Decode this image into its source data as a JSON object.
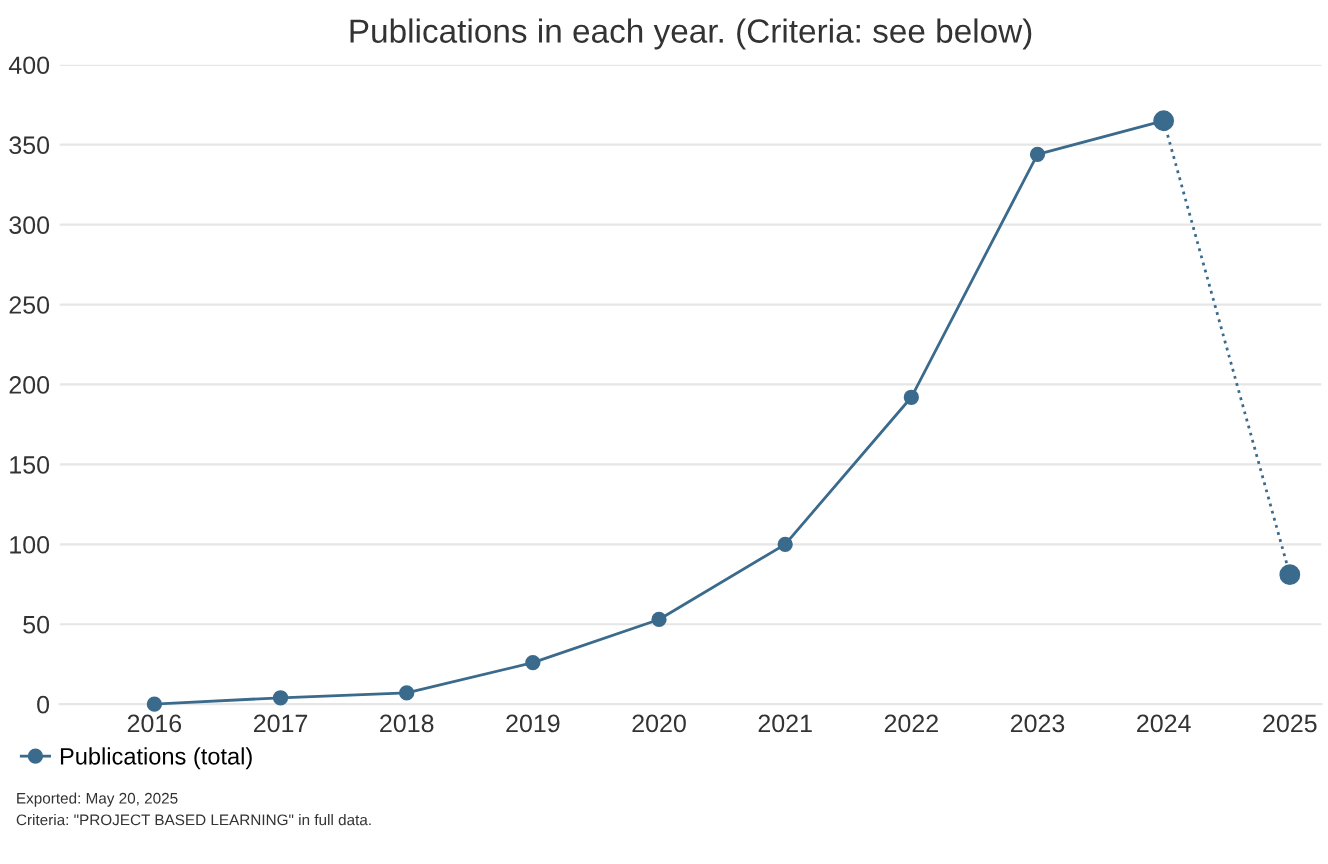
{
  "chart_data": {
    "type": "line",
    "title": "Publications in each year. (Criteria: see below)",
    "categories": [
      "2016",
      "2017",
      "2018",
      "2019",
      "2020",
      "2021",
      "2022",
      "2023",
      "2024",
      "2025"
    ],
    "series": [
      {
        "name": "Publications (total)",
        "color": "#3a6a8c",
        "values": [
          0,
          4,
          7,
          26,
          53,
          100,
          192,
          344,
          365,
          null
        ],
        "marker": "circle",
        "line_style": "solid"
      },
      {
        "color": "#3a6a8c",
        "values": [
          null,
          null,
          null,
          null,
          null,
          null,
          null,
          null,
          365,
          81
        ],
        "marker": "circle",
        "line_style": "dotted"
      }
    ],
    "ylim": [
      0,
      400
    ],
    "yticks": [
      0,
      50,
      100,
      150,
      200,
      250,
      300,
      350,
      400
    ],
    "grid": "y",
    "legend": "bottom left",
    "annotations": [
      "Exported: May 20, 2025",
      "Criteria: \"PROJECT BASED LEARNING\" in full data."
    ]
  }
}
